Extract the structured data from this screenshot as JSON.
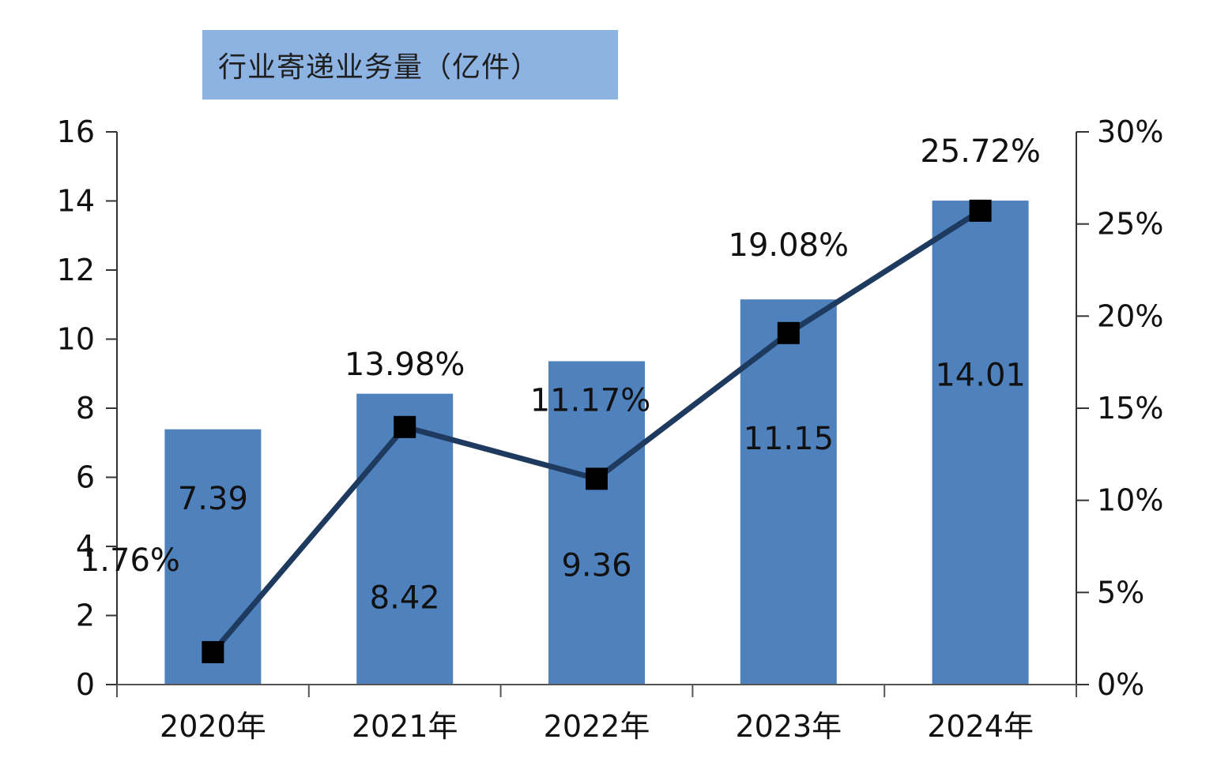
{
  "chart_data": {
    "type": "bar",
    "legend": "行业寄递业务量（亿件）",
    "legend_position": "top-left",
    "categories": [
      "2020年",
      "2021年",
      "2022年",
      "2023年",
      "2024年"
    ],
    "series": [
      {
        "name": "行业寄递业务量（亿件）",
        "type": "bar",
        "axis": "left",
        "color": "#4f81bd",
        "values": [
          7.39,
          8.42,
          9.36,
          11.15,
          14.01
        ],
        "labels": [
          "7.39",
          "8.42",
          "9.36",
          "11.15",
          "14.01"
        ]
      },
      {
        "type": "line",
        "axis": "right",
        "color": "#1f3a5f",
        "marker_color": "#000000",
        "values": [
          1.76,
          13.98,
          11.17,
          19.08,
          25.72
        ],
        "labels": [
          "1.76%",
          "13.98%",
          "11.17%",
          "19.08%",
          "25.72%"
        ]
      }
    ],
    "y_left": {
      "range": [
        0,
        16
      ],
      "ticks": [
        0,
        2,
        4,
        6,
        8,
        10,
        12,
        14,
        16
      ],
      "tick_labels": [
        "0",
        "2",
        "4",
        "6",
        "8",
        "10",
        "12",
        "14",
        "16"
      ]
    },
    "y_right": {
      "range": [
        0,
        30
      ],
      "ticks": [
        0,
        5,
        10,
        15,
        20,
        25,
        30
      ],
      "tick_labels": [
        "0%",
        "5%",
        "10%",
        "15%",
        "20%",
        "25%",
        "30%"
      ]
    },
    "grid": false
  }
}
